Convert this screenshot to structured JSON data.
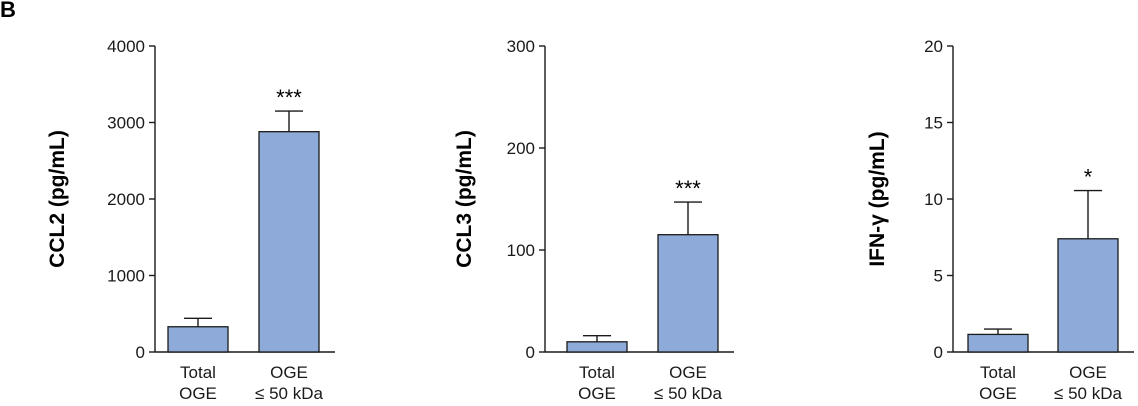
{
  "panel_label": "B",
  "colors": {
    "bar_fill": "#8eaad8",
    "bar_stroke": "#1a1a1a",
    "axis": "#1a1a1a"
  },
  "chart_data": [
    {
      "type": "bar",
      "ylabel": "CCL2 (pg/mL)",
      "ylim": [
        0,
        4000
      ],
      "yticks": [
        "0",
        "1000",
        "2000",
        "3000",
        "4000"
      ],
      "ytick_values": [
        0,
        1000,
        2000,
        3000,
        4000
      ],
      "categories": [
        [
          "Total",
          "OGE"
        ],
        [
          "OGE",
          "≤ 50 kDa"
        ]
      ],
      "values": [
        330,
        2880
      ],
      "errors": [
        110,
        270
      ],
      "significance": [
        "",
        "***"
      ],
      "grid": false,
      "legend": "none"
    },
    {
      "type": "bar",
      "ylabel": "CCL3 (pg/mL)",
      "ylim": [
        0,
        300
      ],
      "yticks": [
        "0",
        "100",
        "200",
        "300"
      ],
      "ytick_values": [
        0,
        100,
        200,
        300
      ],
      "categories": [
        [
          "Total",
          "OGE"
        ],
        [
          "OGE",
          "≤ 50 kDa"
        ]
      ],
      "values": [
        10,
        115
      ],
      "errors": [
        6,
        32
      ],
      "significance": [
        "",
        "***"
      ],
      "grid": false,
      "legend": "none"
    },
    {
      "type": "bar",
      "ylabel": "IFN-γ (pg/mL)",
      "ylim": [
        0,
        20
      ],
      "yticks": [
        "0",
        "5",
        "10",
        "15",
        "20"
      ],
      "ytick_values": [
        0,
        5,
        10,
        15,
        20
      ],
      "categories": [
        [
          "Total",
          "OGE"
        ],
        [
          "OGE",
          "≤ 50 kDa"
        ]
      ],
      "values": [
        1.15,
        7.4
      ],
      "errors": [
        0.35,
        3.15
      ],
      "significance": [
        "",
        "*"
      ],
      "grid": false,
      "legend": "none"
    }
  ]
}
